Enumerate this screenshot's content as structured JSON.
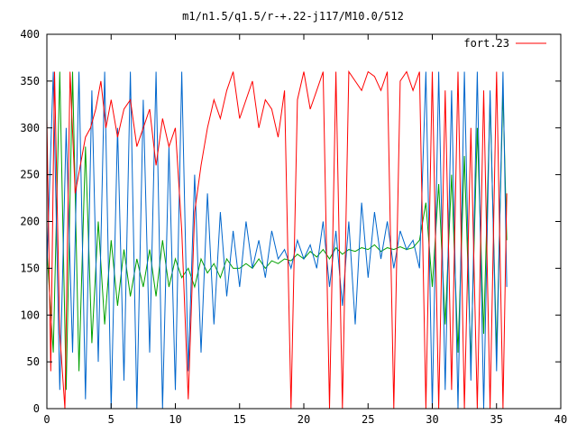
{
  "chart_data": {
    "type": "line",
    "title": "m1/n1.5/q1.5/r-+.22-j117/M10.0/512",
    "xlabel": "",
    "ylabel": "",
    "xlim": [
      0,
      40
    ],
    "ylim": [
      0,
      400
    ],
    "xticks": [
      "0",
      "5",
      "10",
      "15",
      "20",
      "25",
      "30",
      "35",
      "40"
    ],
    "yticks": [
      "0",
      "50",
      "100",
      "150",
      "200",
      "250",
      "300",
      "350",
      "400"
    ],
    "grid": false,
    "legend_position": "top-right",
    "series": [
      {
        "name": "fort.23",
        "color": "#ff0000",
        "x": [
          0,
          0.3,
          0.6,
          1.0,
          1.4,
          1.8,
          2.2,
          2.6,
          3.0,
          3.4,
          3.8,
          4.2,
          4.6,
          5.0,
          5.5,
          6.0,
          6.5,
          7.0,
          7.5,
          8.0,
          8.5,
          9.0,
          9.5,
          10.0,
          10.5,
          11.0,
          11.5,
          12.0,
          12.5,
          13.0,
          13.5,
          14.0,
          14.5,
          15.0,
          15.5,
          16.0,
          16.5,
          17.0,
          17.5,
          18.0,
          18.5,
          19.0,
          19.5,
          20.0,
          20.5,
          21.0,
          21.5,
          22.0,
          22.5,
          23.0,
          23.5,
          24.0,
          24.5,
          25.0,
          25.5,
          26.0,
          26.5,
          27.0,
          27.5,
          28.0,
          28.5,
          29.0,
          29.5,
          30.0,
          30.5,
          31.0,
          31.5,
          32.0,
          32.5,
          33.0,
          33.5,
          34.0,
          34.5,
          35.0,
          35.5,
          35.8
        ],
        "y": [
          310,
          40,
          360,
          80,
          0,
          360,
          230,
          260,
          290,
          300,
          320,
          350,
          300,
          330,
          290,
          320,
          330,
          280,
          300,
          320,
          260,
          310,
          280,
          300,
          190,
          10,
          210,
          260,
          300,
          330,
          310,
          340,
          360,
          310,
          330,
          350,
          300,
          330,
          320,
          290,
          340,
          0,
          330,
          360,
          320,
          340,
          360,
          0,
          360,
          0,
          360,
          350,
          340,
          360,
          355,
          340,
          360,
          0,
          350,
          360,
          340,
          360,
          0,
          360,
          0,
          340,
          20,
          360,
          0,
          300,
          0,
          340,
          0,
          360,
          0,
          230
        ]
      },
      {
        "name": "",
        "color": "#0066cc",
        "x": [
          0,
          0.5,
          1.0,
          1.5,
          2.0,
          2.5,
          3.0,
          3.5,
          4.0,
          4.5,
          5.0,
          5.5,
          6.0,
          6.5,
          7.0,
          7.5,
          8.0,
          8.5,
          9.0,
          9.5,
          10.0,
          10.5,
          11.0,
          11.5,
          12.0,
          12.5,
          13.0,
          13.5,
          14.0,
          14.5,
          15.0,
          15.5,
          16.0,
          16.5,
          17.0,
          17.5,
          18.0,
          18.5,
          19.0,
          19.5,
          20.0,
          20.5,
          21.0,
          21.5,
          22.0,
          22.5,
          23.0,
          23.5,
          24.0,
          24.5,
          25.0,
          25.5,
          26.0,
          26.5,
          27.0,
          27.5,
          28.0,
          28.5,
          29.0,
          29.5,
          30.0,
          30.5,
          31.0,
          31.5,
          32.0,
          32.5,
          33.0,
          33.5,
          34.0,
          34.5,
          35.0,
          35.5,
          35.8
        ],
        "y": [
          150,
          360,
          20,
          300,
          60,
          360,
          10,
          340,
          50,
          360,
          0,
          300,
          30,
          360,
          0,
          330,
          60,
          360,
          0,
          280,
          20,
          360,
          40,
          250,
          60,
          230,
          90,
          210,
          120,
          190,
          130,
          200,
          150,
          180,
          140,
          190,
          160,
          170,
          150,
          180,
          160,
          175,
          150,
          200,
          130,
          190,
          110,
          200,
          90,
          220,
          140,
          210,
          160,
          200,
          150,
          190,
          170,
          180,
          150,
          360,
          0,
          360,
          20,
          340,
          0,
          360,
          30,
          360,
          0,
          340,
          40,
          360,
          130
        ]
      },
      {
        "name": "",
        "color": "#00a000",
        "x": [
          0,
          0.5,
          1.0,
          1.5,
          2.0,
          2.5,
          3.0,
          3.5,
          4.0,
          4.5,
          5.0,
          5.5,
          6.0,
          6.5,
          7.0,
          7.5,
          8.0,
          8.5,
          9.0,
          9.5,
          10.0,
          10.5,
          11.0,
          11.5,
          12.0,
          12.5,
          13.0,
          13.5,
          14.0,
          14.5,
          15.0,
          15.5,
          16.0,
          16.5,
          17.0,
          17.5,
          18.0,
          18.5,
          19.0,
          19.5,
          20.0,
          20.5,
          21.0,
          21.5,
          22.0,
          22.5,
          23.0,
          23.5,
          24.0,
          24.5,
          25.0,
          25.5,
          26.0,
          26.5,
          27.0,
          27.5,
          28.0,
          28.5,
          29.0,
          29.5,
          30.0,
          30.5,
          31.0,
          31.5,
          32.0,
          32.5,
          33.0,
          33.5,
          34.0,
          34.5,
          35.0,
          35.5,
          35.8
        ],
        "y": [
          170,
          60,
          360,
          20,
          360,
          40,
          280,
          70,
          200,
          90,
          180,
          110,
          170,
          120,
          160,
          130,
          170,
          120,
          180,
          130,
          160,
          140,
          150,
          130,
          160,
          145,
          155,
          140,
          160,
          150,
          150,
          155,
          150,
          160,
          150,
          158,
          155,
          160,
          158,
          165,
          160,
          168,
          162,
          170,
          160,
          172,
          165,
          170,
          168,
          172,
          170,
          175,
          168,
          172,
          170,
          173,
          170,
          172,
          180,
          220,
          130,
          240,
          90,
          250,
          60,
          270,
          50,
          300,
          80,
          330,
          60,
          340,
          180
        ]
      }
    ]
  }
}
